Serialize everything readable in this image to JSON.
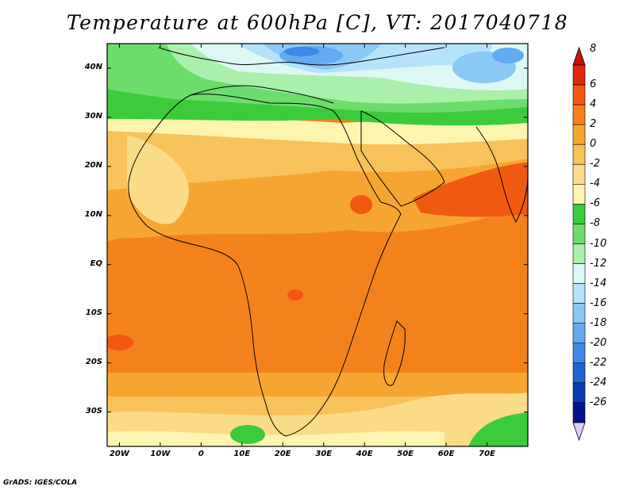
{
  "title": "Temperature at 600hPa [C], VT: 2017040718",
  "credit": "GrADS: IGES/COLA",
  "map": {
    "projection": "latlon",
    "lon_range": [
      -23,
      80
    ],
    "lat_range": [
      -37,
      45
    ],
    "lat_ticks": [
      "40N",
      "30N",
      "20N",
      "10N",
      "EQ",
      "10S",
      "20S",
      "30S"
    ],
    "lat_values": [
      40,
      30,
      20,
      10,
      0,
      -10,
      -20,
      -30
    ],
    "lon_ticks": [
      "20W",
      "10W",
      "0",
      "10E",
      "20E",
      "30E",
      "40E",
      "50E",
      "60E",
      "70E"
    ],
    "lon_values": [
      -20,
      -10,
      0,
      10,
      20,
      30,
      40,
      50,
      60,
      70
    ]
  },
  "colorbar": {
    "labels": [
      "8",
      "6",
      "4",
      "2",
      "0",
      "-2",
      "-4",
      "-6",
      "-8",
      "-10",
      "-12",
      "-14",
      "-16",
      "-18",
      "-20",
      "-22",
      "-24",
      "-26"
    ],
    "colors": [
      "#e0280c",
      "#f05a10",
      "#f4821c",
      "#f6a630",
      "#f8c25a",
      "#fadc88",
      "#fdf4b0",
      "#3ccb3c",
      "#6cdc6c",
      "#aaf0aa",
      "#dcf8f4",
      "#b4e2fa",
      "#8cc8f4",
      "#64aaf0",
      "#3c8ae6",
      "#1e64d2",
      "#0a3cb4",
      "#06148c"
    ],
    "over_color": "#c8100a",
    "under_color": "#dcd0f8"
  },
  "chart_data": {
    "type": "map",
    "title": "Temperature at 600hPa [C], VT: 2017040718",
    "variable": "Temperature",
    "level": "600hPa",
    "units": "C",
    "valid_time": "2017040718",
    "lon_range": [
      -23,
      80
    ],
    "lat_range": [
      -37,
      45
    ],
    "contour_levels": [
      8,
      6,
      4,
      2,
      0,
      -2,
      -4,
      -6,
      -8,
      -10,
      -12,
      -14,
      -16,
      -18,
      -20,
      -22,
      -24,
      -26
    ]
  }
}
